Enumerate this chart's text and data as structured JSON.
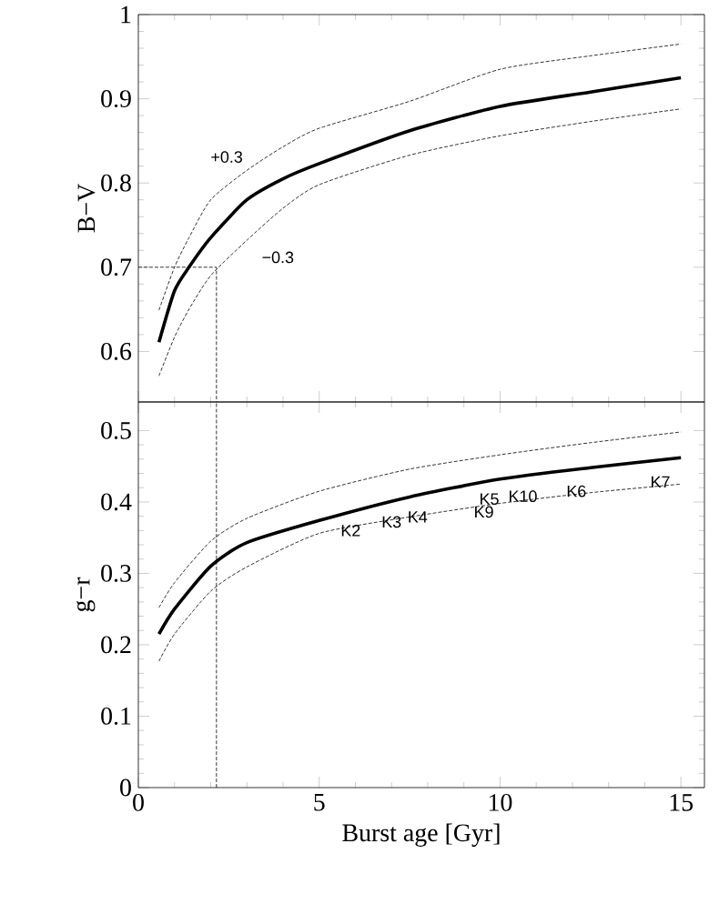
{
  "chart_data": [
    {
      "type": "line",
      "ylabel": "B−V",
      "xlim": [
        0,
        15.65
      ],
      "xticks": [
        0,
        5,
        10,
        15
      ],
      "ylim": [
        0.54,
        1.0
      ],
      "yticks": [
        0.6,
        0.7,
        0.8,
        0.9,
        1
      ],
      "tick_labels": "y",
      "series": [
        {
          "color": "#000000",
          "line_style": "solid",
          "x": [
            0.57,
            1,
            1.4,
            2,
            3,
            4,
            5,
            7.5,
            10,
            12.5,
            15
          ],
          "values": [
            0.611,
            0.672,
            0.7,
            0.735,
            0.78,
            0.805,
            0.823,
            0.862,
            0.891,
            0.908,
            0.925
          ]
        },
        {
          "name": "+0.3",
          "color": "#000000",
          "line_style": "dashed",
          "x": [
            0.57,
            1,
            1.4,
            2,
            3,
            4,
            5,
            7.5,
            10,
            12.5,
            15
          ],
          "values": [
            0.649,
            0.7,
            0.735,
            0.78,
            0.815,
            0.843,
            0.865,
            0.897,
            0.935,
            0.951,
            0.965
          ]
        },
        {
          "name": "−0.3",
          "color": "#000000",
          "line_style": "dashed",
          "x": [
            0.57,
            1,
            1.4,
            2,
            3,
            4,
            5,
            7.5,
            10,
            12.5,
            15
          ],
          "values": [
            0.571,
            0.617,
            0.65,
            0.69,
            0.732,
            0.77,
            0.798,
            0.833,
            0.856,
            0.873,
            0.888
          ]
        },
        {
          "color": "#000000",
          "line_style": "dashed",
          "x": [
            0,
            2.16,
            2.16
          ],
          "values": [
            0.7,
            0.7,
            0.54
          ]
        }
      ]
    },
    {
      "type": "line",
      "ylabel": "g−r",
      "xlabel": "Burst age [Gyr]",
      "xlim": [
        0,
        15.65
      ],
      "xticks": [
        0,
        5,
        10,
        15
      ],
      "ylim": [
        0,
        0.54
      ],
      "yticks": [
        0,
        0.1,
        0.2,
        0.3,
        0.4,
        0.5
      ],
      "series": [
        {
          "color": "#000000",
          "line_style": "solid",
          "x": [
            0.57,
            1,
            2,
            3,
            5,
            7.5,
            10,
            12.5,
            15
          ],
          "values": [
            0.215,
            0.25,
            0.31,
            0.343,
            0.374,
            0.407,
            0.432,
            0.448,
            0.462
          ]
        },
        {
          "color": "#000000",
          "line_style": "dashed",
          "x": [
            0.57,
            1,
            2,
            3,
            5,
            7.5,
            10,
            12.5,
            15
          ],
          "values": [
            0.252,
            0.287,
            0.345,
            0.377,
            0.415,
            0.446,
            0.466,
            0.483,
            0.498
          ]
        },
        {
          "color": "#000000",
          "line_style": "dashed",
          "x": [
            0.57,
            1,
            2,
            3,
            5,
            7.5,
            10,
            12.5,
            15
          ],
          "values": [
            0.177,
            0.215,
            0.275,
            0.309,
            0.356,
            0.379,
            0.398,
            0.413,
            0.425
          ]
        }
      ],
      "ref_lines": [
        {
          "axis": "x",
          "value": 2.16,
          "line_style": "dashed"
        }
      ],
      "annotations": [
        {
          "text": "K2",
          "x": 5.87,
          "y": 0.36
        },
        {
          "text": "K3",
          "x": 7.0,
          "y": 0.372
        },
        {
          "text": "K4",
          "x": 7.72,
          "y": 0.379
        },
        {
          "text": "K5",
          "x": 9.7,
          "y": 0.404
        },
        {
          "text": "K9",
          "x": 9.55,
          "y": 0.386
        },
        {
          "text": "K10",
          "x": 10.63,
          "y": 0.408
        },
        {
          "text": "K6",
          "x": 12.11,
          "y": 0.415
        },
        {
          "text": "K7",
          "x": 14.43,
          "y": 0.428
        }
      ]
    }
  ]
}
